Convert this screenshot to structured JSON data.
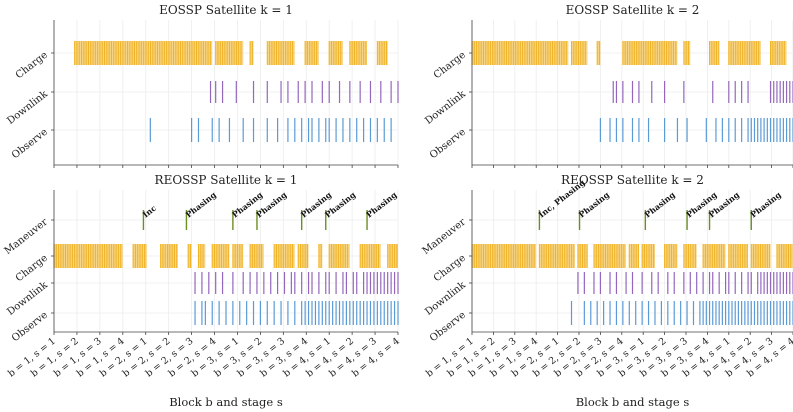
{
  "figure": {
    "xlabel": "Block b and stage s",
    "colors": {
      "charge": "#F0B429",
      "downlink": "#9467BD",
      "observe": "#5B9BD5",
      "maneuver": "#6B8E23"
    }
  },
  "chart_data": [
    {
      "type": "event-raster",
      "title": "EOSSP Satellite k = 1",
      "x_range": [
        0,
        1
      ],
      "rows": [
        "Charge",
        "Downlink",
        "Observe"
      ],
      "series": [
        {
          "name": "Charge",
          "segments": [
            [
              0.06,
              0.46
            ],
            [
              0.47,
              0.55
            ],
            [
              0.57,
              0.58
            ],
            [
              0.62,
              0.7
            ],
            [
              0.73,
              0.77
            ],
            [
              0.8,
              0.84
            ],
            [
              0.86,
              0.91
            ],
            [
              0.94,
              0.97
            ]
          ]
        },
        {
          "name": "Downlink",
          "events": [
            0.455,
            0.47,
            0.49,
            0.53,
            0.58,
            0.62,
            0.66,
            0.68,
            0.71,
            0.73,
            0.75,
            0.78,
            0.8,
            0.83,
            0.86,
            0.89,
            0.92,
            0.95,
            0.98,
            1.0
          ]
        },
        {
          "name": "Observe",
          "events": [
            0.28,
            0.4,
            0.42,
            0.46,
            0.48,
            0.51,
            0.55,
            0.58,
            0.62,
            0.65,
            0.68,
            0.7,
            0.72,
            0.74,
            0.75,
            0.77,
            0.79,
            0.8,
            0.82,
            0.84,
            0.86,
            0.88,
            0.9,
            0.92,
            0.94,
            0.96,
            0.98
          ]
        }
      ]
    },
    {
      "type": "event-raster",
      "title": "EOSSP Satellite k = 2",
      "x_range": [
        0,
        1
      ],
      "rows": [
        "Charge",
        "Downlink",
        "Observe"
      ],
      "series": [
        {
          "name": "Charge",
          "segments": [
            [
              0.0,
              0.3
            ],
            [
              0.31,
              0.36
            ],
            [
              0.39,
              0.4
            ],
            [
              0.47,
              0.64
            ],
            [
              0.66,
              0.68
            ],
            [
              0.74,
              0.77
            ],
            [
              0.8,
              0.9
            ],
            [
              0.93,
              0.98
            ]
          ]
        },
        {
          "name": "Downlink",
          "events": [
            0.44,
            0.45,
            0.47,
            0.5,
            0.52,
            0.56,
            0.6,
            0.66,
            0.75,
            0.8,
            0.82,
            0.84,
            0.86,
            0.93,
            0.94,
            0.95,
            0.96,
            0.97,
            0.98,
            0.99,
            1.0
          ]
        },
        {
          "name": "Observe",
          "events": [
            0.4,
            0.43,
            0.45,
            0.47,
            0.5,
            0.52,
            0.55,
            0.6,
            0.64,
            0.67,
            0.73,
            0.76,
            0.78,
            0.8,
            0.82,
            0.84,
            0.86,
            0.87,
            0.88,
            0.89,
            0.9,
            0.91,
            0.92,
            0.93,
            0.94,
            0.95,
            0.96,
            0.97,
            0.98,
            0.99,
            1.0
          ]
        }
      ]
    },
    {
      "type": "event-raster",
      "title": "REOSSP Satellite k = 1",
      "x_range": [
        0,
        1
      ],
      "rows": [
        "Maneuver",
        "Charge",
        "Downlink",
        "Observe"
      ],
      "maneuvers": [
        {
          "x": 0.26,
          "label": "Inc"
        },
        {
          "x": 0.385,
          "label": "Phasing"
        },
        {
          "x": 0.52,
          "label": "Phasing"
        },
        {
          "x": 0.59,
          "label": "Phasing"
        },
        {
          "x": 0.72,
          "label": "Phasing"
        },
        {
          "x": 0.79,
          "label": "Phasing"
        },
        {
          "x": 0.91,
          "label": "Phasing"
        }
      ],
      "series": [
        {
          "name": "Charge",
          "segments": [
            [
              0.0,
              0.2
            ],
            [
              0.23,
              0.27
            ],
            [
              0.31,
              0.36
            ],
            [
              0.39,
              0.4
            ],
            [
              0.42,
              0.44
            ],
            [
              0.46,
              0.51
            ],
            [
              0.52,
              0.55
            ],
            [
              0.57,
              0.61
            ],
            [
              0.64,
              0.7
            ],
            [
              0.71,
              0.74
            ],
            [
              0.77,
              0.78
            ],
            [
              0.8,
              0.86
            ],
            [
              0.89,
              0.95
            ],
            [
              0.97,
              1.0
            ]
          ]
        },
        {
          "name": "Downlink",
          "events": [
            0.41,
            0.43,
            0.45,
            0.47,
            0.49,
            0.52,
            0.55,
            0.57,
            0.59,
            0.61,
            0.63,
            0.65,
            0.67,
            0.69,
            0.7,
            0.72,
            0.74,
            0.75,
            0.77,
            0.79,
            0.8,
            0.82,
            0.84,
            0.85,
            0.87,
            0.88,
            0.9,
            0.91,
            0.92,
            0.93,
            0.94,
            0.95,
            0.96,
            0.97,
            0.98,
            0.99,
            1.0
          ]
        },
        {
          "name": "Observe",
          "events": [
            0.41,
            0.43,
            0.44,
            0.46,
            0.48,
            0.5,
            0.52,
            0.54,
            0.56,
            0.58,
            0.6,
            0.62,
            0.64,
            0.66,
            0.68,
            0.7,
            0.72,
            0.73,
            0.74,
            0.75,
            0.76,
            0.77,
            0.78,
            0.79,
            0.8,
            0.81,
            0.82,
            0.83,
            0.84,
            0.85,
            0.86,
            0.87,
            0.88,
            0.89,
            0.9,
            0.91,
            0.92,
            0.93,
            0.94,
            0.95,
            0.96,
            0.97,
            0.98,
            0.99,
            1.0
          ]
        }
      ]
    },
    {
      "type": "event-raster",
      "title": "REOSSP Satellite k = 2",
      "x_range": [
        0,
        1
      ],
      "rows": [
        "Maneuver",
        "Charge",
        "Downlink",
        "Observe"
      ],
      "maneuvers": [
        {
          "x": 0.21,
          "label": "Inc, Phasing"
        },
        {
          "x": 0.335,
          "label": "Phasing"
        },
        {
          "x": 0.54,
          "label": "Phasing"
        },
        {
          "x": 0.67,
          "label": "Phasing"
        },
        {
          "x": 0.74,
          "label": "Phasing"
        },
        {
          "x": 0.87,
          "label": "Phasing"
        }
      ],
      "series": [
        {
          "name": "Charge",
          "segments": [
            [
              0.0,
              0.2
            ],
            [
              0.21,
              0.32
            ],
            [
              0.33,
              0.36
            ],
            [
              0.38,
              0.48
            ],
            [
              0.49,
              0.52
            ],
            [
              0.53,
              0.57
            ],
            [
              0.6,
              0.64
            ],
            [
              0.66,
              0.7
            ],
            [
              0.72,
              0.79
            ],
            [
              0.8,
              0.86
            ],
            [
              0.87,
              0.93
            ],
            [
              0.95,
              1.0
            ]
          ]
        },
        {
          "name": "Downlink",
          "events": [
            0.33,
            0.35,
            0.38,
            0.4,
            0.43,
            0.45,
            0.48,
            0.5,
            0.53,
            0.56,
            0.58,
            0.61,
            0.63,
            0.66,
            0.68,
            0.7,
            0.72,
            0.74,
            0.75,
            0.77,
            0.79,
            0.8,
            0.82,
            0.84,
            0.86,
            0.87,
            0.89,
            0.9,
            0.91,
            0.92,
            0.93,
            0.94,
            0.95,
            0.96,
            0.97,
            0.98,
            0.99,
            1.0
          ]
        },
        {
          "name": "Observe",
          "events": [
            0.31,
            0.35,
            0.37,
            0.39,
            0.41,
            0.43,
            0.45,
            0.47,
            0.49,
            0.51,
            0.53,
            0.55,
            0.57,
            0.59,
            0.61,
            0.63,
            0.65,
            0.67,
            0.69,
            0.71,
            0.72,
            0.73,
            0.74,
            0.75,
            0.76,
            0.77,
            0.78,
            0.79,
            0.8,
            0.81,
            0.82,
            0.83,
            0.84,
            0.85,
            0.86,
            0.87,
            0.88,
            0.89,
            0.9,
            0.91,
            0.92,
            0.93,
            0.94,
            0.95,
            0.96,
            0.97,
            0.98,
            0.99,
            1.0
          ]
        }
      ],
      "x_ticks": [
        "b = 1, s = 1",
        "b = 1, s = 2",
        "b = 1, s = 3",
        "b = 1, s = 4",
        "b = 2, s = 1",
        "b = 2, s = 2",
        "b = 2, s = 3",
        "b = 2, s = 4",
        "b = 3, s = 1",
        "b = 3, s = 2",
        "b = 3, s = 3",
        "b = 3, s = 4",
        "b = 4, s = 1",
        "b = 4, s = 2",
        "b = 4, s = 3",
        "b = 4, s = 4"
      ]
    }
  ]
}
